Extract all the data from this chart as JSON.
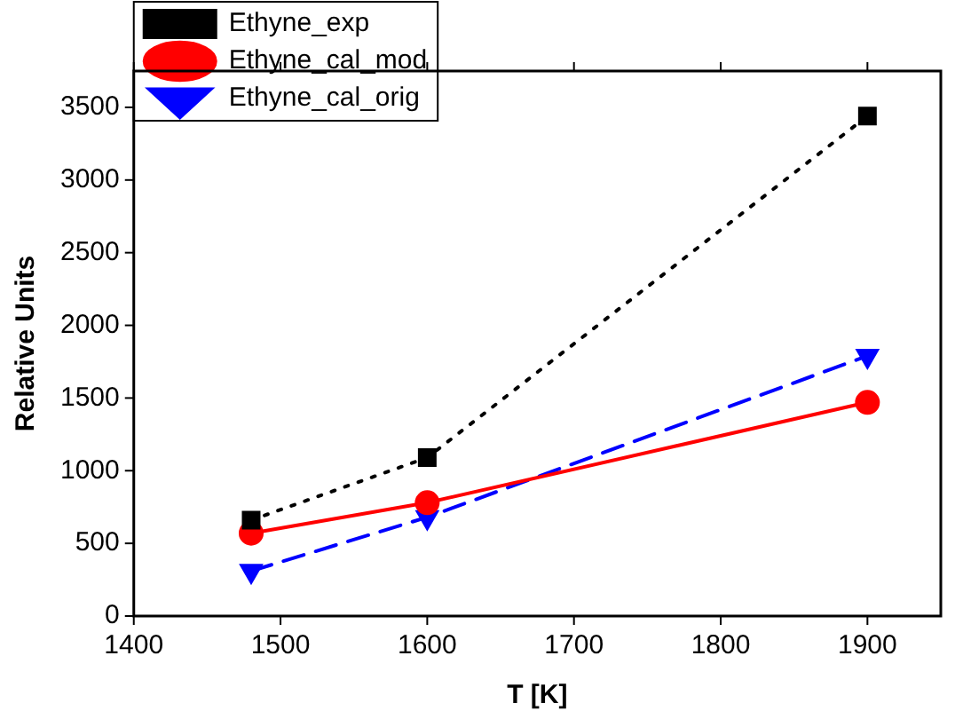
{
  "chart_data": {
    "type": "line",
    "xlabel": "T [K]",
    "ylabel": "Relative Units",
    "x": [
      1480,
      1600,
      1900
    ],
    "series": [
      {
        "name": "Ethyne_exp",
        "color": "#000000",
        "values": [
          660,
          1090,
          3440
        ],
        "marker": "square",
        "line_style": "dotted"
      },
      {
        "name": "Ethyne_cal_mod",
        "color": "#ff0000",
        "values": [
          570,
          780,
          1470
        ],
        "marker": "circle",
        "line_style": "solid"
      },
      {
        "name": "Ethyne_cal_orig",
        "color": "#0000ff",
        "values": [
          310,
          680,
          1790
        ],
        "marker": "triangle_down",
        "line_style": "dashed"
      }
    ],
    "xlim": [
      1400,
      1950
    ],
    "xticks": [
      1400,
      1500,
      1600,
      1700,
      1800,
      1900
    ],
    "ylim": [
      0,
      3750
    ],
    "yticks": [
      0,
      500,
      1000,
      1500,
      2000,
      2500,
      3000,
      3500
    ],
    "grid": false,
    "legend": "top left"
  }
}
